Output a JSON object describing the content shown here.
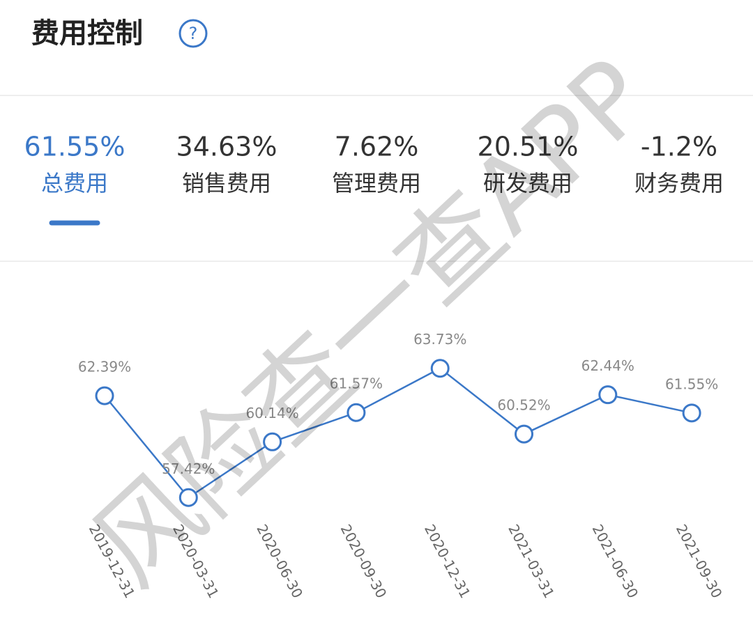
{
  "header": {
    "title": "费用控制",
    "help": "?"
  },
  "tabs": [
    {
      "value": "61.55%",
      "label": "总费用",
      "active": true
    },
    {
      "value": "34.63%",
      "label": "销售费用"
    },
    {
      "value": "7.62%",
      "label": "管理费用"
    },
    {
      "value": "20.51%",
      "label": "研发费用"
    },
    {
      "value": "-1.2%",
      "label": "财务费用"
    }
  ],
  "chart_data": {
    "type": "line",
    "categories": [
      "2019-12-31",
      "2020-03-31",
      "2020-06-30",
      "2020-09-30",
      "2020-12-31",
      "2021-03-31",
      "2021-06-30",
      "2021-09-30"
    ],
    "values": [
      62.39,
      57.42,
      60.14,
      61.57,
      63.73,
      60.52,
      62.44,
      61.55
    ],
    "value_labels": [
      "62.39%",
      "57.42%",
      "60.14%",
      "61.57%",
      "63.73%",
      "60.52%",
      "62.44%",
      "61.55%"
    ],
    "color": "#3b78c8",
    "ylim": [
      56,
      66
    ]
  },
  "watermark": "风险查一查APP"
}
